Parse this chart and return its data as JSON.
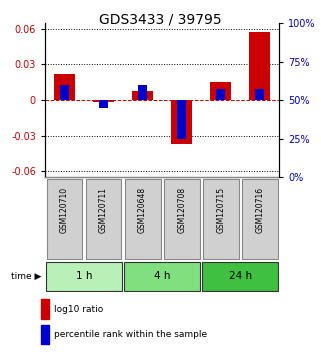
{
  "title": "GDS3433 / 39795",
  "samples": [
    "GSM120710",
    "GSM120711",
    "GSM120648",
    "GSM120708",
    "GSM120715",
    "GSM120716"
  ],
  "log10_ratio": [
    0.022,
    -0.002,
    0.008,
    -0.037,
    0.015,
    0.057
  ],
  "percentile_pct": [
    60,
    45,
    60,
    25,
    57,
    57
  ],
  "groups": [
    {
      "label": "1 h",
      "indices": [
        0,
        1
      ],
      "color": "#b8f0b8"
    },
    {
      "label": "4 h",
      "indices": [
        2,
        3
      ],
      "color": "#80e080"
    },
    {
      "label": "24 h",
      "indices": [
        4,
        5
      ],
      "color": "#40c040"
    }
  ],
  "ylim": [
    -0.065,
    0.065
  ],
  "yticks_left": [
    -0.06,
    -0.03,
    0.0,
    0.03,
    0.06
  ],
  "yticks_right": [
    0,
    25,
    50,
    75,
    100
  ],
  "red_color": "#cc0000",
  "blue_color": "#0000cc",
  "title_fontsize": 10,
  "tick_fontsize": 7,
  "sample_box_color": "#d0d0d0",
  "sample_box_border": "#888888"
}
